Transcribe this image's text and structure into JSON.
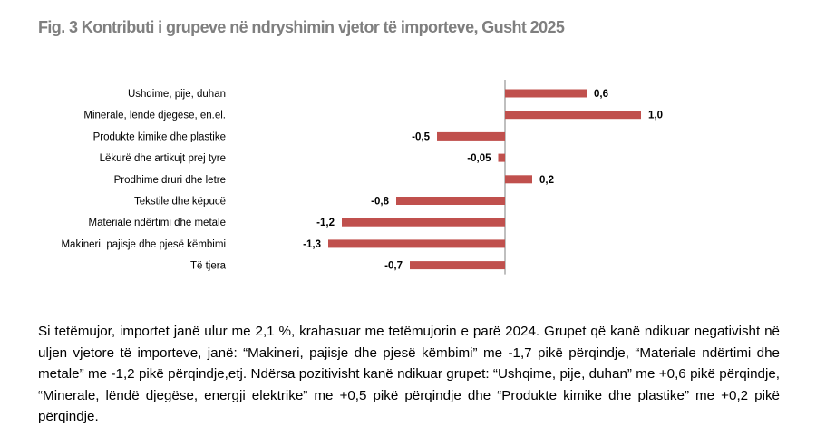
{
  "figure": {
    "title": "Fig. 3 Kontributi i grupeve në ndryshimin vjetor të importeve, Gusht 2025"
  },
  "chart_data": {
    "type": "bar",
    "orientation": "horizontal",
    "categories": [
      "Ushqime, pije, duhan",
      "Minerale, lëndë djegëse, en.el.",
      "Produkte kimike dhe plastike",
      "Lëkurë dhe artikujt prej tyre",
      "Prodhime druri dhe letre",
      "Tekstile dhe këpucë",
      "Materiale ndërtimi dhe metale",
      "Makineri, pajisje dhe pjesë këmbimi",
      "Të tjera"
    ],
    "values": [
      0.6,
      1.0,
      -0.5,
      -0.05,
      0.2,
      -0.8,
      -1.2,
      -1.3,
      -0.7
    ],
    "value_labels": [
      "0,6",
      "1,0",
      "-0,5",
      "-0,05",
      "0,2",
      "-0,8",
      "-1,2",
      "-1,3",
      "-0,7"
    ],
    "xlim": [
      -1.3,
      1.0
    ],
    "bar_color": "#c0504d",
    "grid": false,
    "legend": "none"
  },
  "text": {
    "paragraph": "Si tetëmujor, importet janë ulur me 2,1 %, krahasuar me tetëmujorin e parë 2024. Grupet që kanë ndikuar negativisht në uljen vjetore të importeve, janë: “Makineri, pajisje dhe pjesë këmbimi” me -1,7 pikë përqindje, “Materiale ndërtimi dhe metale” me -1,2 pikë përqindje,etj. Ndërsa pozitivisht kanë ndikuar grupet: “Ushqime, pije, duhan” me +0,6 pikë përqindje, “Minerale, lëndë djegëse, energji elektrike” me +0,5 pikë përqindje dhe “Produkte kimike dhe plastike” me +0,2 pikë përqindje."
  }
}
